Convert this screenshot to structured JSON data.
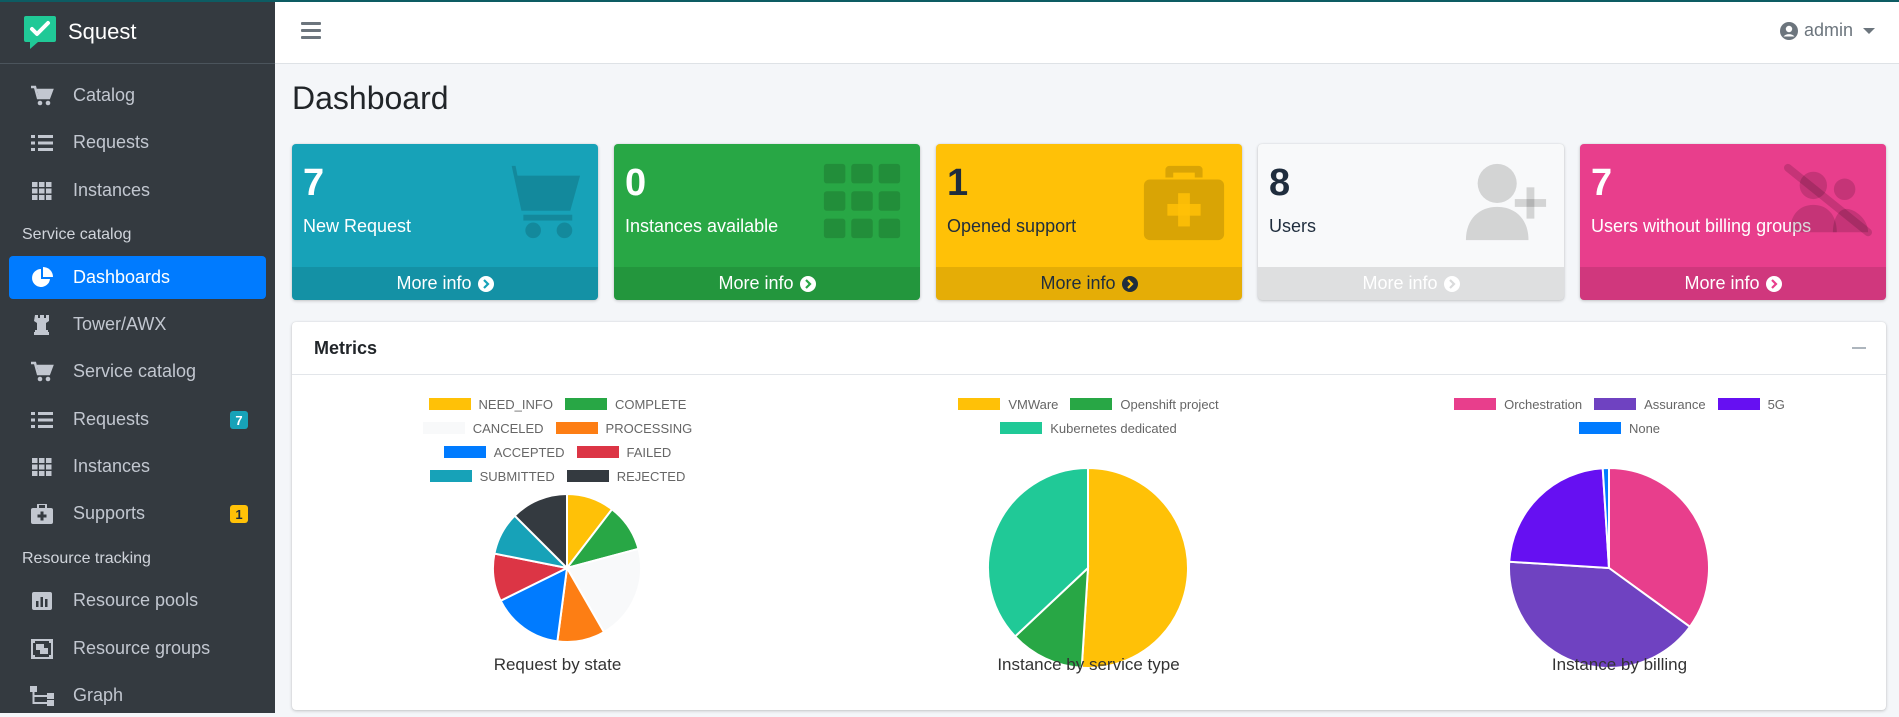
{
  "app": {
    "brand": "Squest",
    "brand_color": "#20c997"
  },
  "sidebar": {
    "items": [
      {
        "label": "Catalog",
        "icon": "cart-icon"
      },
      {
        "label": "Requests",
        "icon": "list-icon"
      },
      {
        "label": "Instances",
        "icon": "grid-icon"
      },
      {
        "label": "Dashboards",
        "icon": "pie-chart-icon",
        "active": true
      },
      {
        "label": "Tower/AWX",
        "icon": "chess-rook-icon"
      },
      {
        "label": "Service catalog",
        "icon": "cart-icon"
      },
      {
        "label": "Requests",
        "icon": "list-icon",
        "badge": "7"
      },
      {
        "label": "Instances",
        "icon": "grid-icon"
      },
      {
        "label": "Supports",
        "icon": "medkit-icon",
        "badge": "1"
      },
      {
        "label": "Resource pools",
        "icon": "bar-chart-icon"
      },
      {
        "label": "Resource groups",
        "icon": "object-group-icon"
      },
      {
        "label": "Graph",
        "icon": "sitemap-icon"
      }
    ],
    "headers": {
      "service_catalog": "Service catalog",
      "resource_tracking": "Resource tracking"
    }
  },
  "navbar": {
    "user": "admin"
  },
  "page": {
    "title": "Dashboard"
  },
  "boxes": [
    {
      "value": "7",
      "label": "New Request",
      "more": "More info",
      "color": "#17a2b8"
    },
    {
      "value": "0",
      "label": "Instances available",
      "more": "More info",
      "color": "#28a745"
    },
    {
      "value": "1",
      "label": "Opened support",
      "more": "More info",
      "color": "#ffc107"
    },
    {
      "value": "8",
      "label": "Users",
      "more": "More info",
      "color": "#f8f9fa"
    },
    {
      "value": "7",
      "label": "Users without billing groups",
      "more": "More info",
      "color": "#e83e8c"
    }
  ],
  "metrics": {
    "title": "Metrics"
  },
  "chart_data": [
    {
      "type": "pie",
      "title": "Request by state",
      "categories": [
        "NEED_INFO",
        "COMPLETE",
        "CANCELED",
        "PROCESSING",
        "ACCEPTED",
        "FAILED",
        "SUBMITTED",
        "REJECTED"
      ],
      "values": [
        1,
        1,
        2,
        1,
        1.5,
        1,
        0.9,
        1.2
      ],
      "colors": [
        "#ffc107",
        "#28a745",
        "#f8f9fa",
        "#fd7e14",
        "#007bff",
        "#dc3545",
        "#17a2b8",
        "#343a40"
      ]
    },
    {
      "type": "pie",
      "title": "Instance by service type",
      "categories": [
        "VMWare",
        "Openshift project",
        "Kubernetes dedicated"
      ],
      "values": [
        51,
        12,
        37
      ],
      "colors": [
        "#ffc107",
        "#28a745",
        "#20c997"
      ]
    },
    {
      "type": "pie",
      "title": "Instance by billing",
      "categories": [
        "Orchestration",
        "Assurance",
        "5G",
        "None"
      ],
      "values": [
        35,
        41,
        23,
        1
      ],
      "colors": [
        "#e83e8c",
        "#6f42c1",
        "#6610f2",
        "#007bff"
      ]
    }
  ]
}
